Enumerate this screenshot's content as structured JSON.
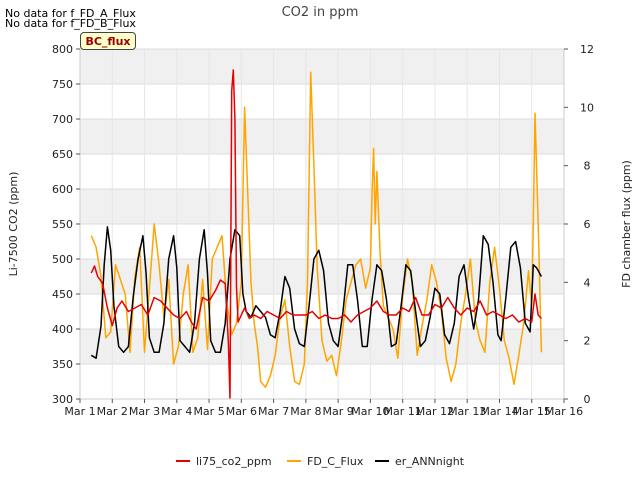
{
  "annotations": {
    "no_data_1": "No data for f_FD_A_Flux",
    "no_data_2": "No data for f_FD_B_Flux",
    "badge": "BC_flux"
  },
  "colors": {
    "li75": "#e60000",
    "fd_c": "#ffa500",
    "er": "#000000",
    "band": "#f0f0f0"
  },
  "chart_data": {
    "type": "line",
    "title": "CO2 in ppm",
    "ylabel": "Li-7500 CO2 (ppm)",
    "y2label": "FD chamber flux (ppm)",
    "ylim": [
      300,
      800
    ],
    "y2lim": [
      0,
      12
    ],
    "xlim": [
      1,
      16
    ],
    "yticks": [
      300,
      350,
      400,
      450,
      500,
      550,
      600,
      650,
      700,
      750,
      800
    ],
    "y2ticks": [
      0,
      2,
      4,
      6,
      8,
      10,
      12
    ],
    "xticks": [
      {
        "v": 1,
        "label": "Mar 1"
      },
      {
        "v": 2,
        "label": "Mar 2"
      },
      {
        "v": 3,
        "label": "Mar 3"
      },
      {
        "v": 4,
        "label": "Mar 4"
      },
      {
        "v": 5,
        "label": "Mar 5"
      },
      {
        "v": 6,
        "label": "Mar 6"
      },
      {
        "v": 7,
        "label": "Mar 7"
      },
      {
        "v": 8,
        "label": "Mar 8"
      },
      {
        "v": 9,
        "label": "Mar 9"
      },
      {
        "v": 10,
        "label": "Mar 10"
      },
      {
        "v": 11,
        "label": "Mar 11"
      },
      {
        "v": 12,
        "label": "Mar 12"
      },
      {
        "v": 13,
        "label": "Mar 13"
      },
      {
        "v": 14,
        "label": "Mar 14"
      },
      {
        "v": 15,
        "label": "Mar 15"
      },
      {
        "v": 16,
        "label": "Mar 16"
      }
    ],
    "legend_position": "bottom",
    "series": [
      {
        "name": "li75_co2_ppm",
        "axis": "left",
        "color": "#e60000",
        "x": [
          1.35,
          1.45,
          1.55,
          1.7,
          1.85,
          2.0,
          2.15,
          2.3,
          2.5,
          2.7,
          2.9,
          3.1,
          3.3,
          3.5,
          3.7,
          3.9,
          4.1,
          4.3,
          4.45,
          4.6,
          4.8,
          5.0,
          5.2,
          5.35,
          5.5,
          5.6,
          5.65,
          5.7,
          5.75,
          5.8,
          5.85,
          5.9,
          6.0,
          6.1,
          6.25,
          6.4,
          6.6,
          6.8,
          7.0,
          7.2,
          7.4,
          7.6,
          7.8,
          8.0,
          8.2,
          8.4,
          8.6,
          8.8,
          9.0,
          9.2,
          9.4,
          9.6,
          9.8,
          10.0,
          10.2,
          10.4,
          10.6,
          10.8,
          11.0,
          11.2,
          11.4,
          11.6,
          11.8,
          12.0,
          12.2,
          12.4,
          12.6,
          12.8,
          13.0,
          13.2,
          13.4,
          13.6,
          13.8,
          14.0,
          14.2,
          14.4,
          14.6,
          14.8,
          15.0,
          15.1,
          15.2,
          15.3
        ],
        "y": [
          480,
          490,
          475,
          465,
          430,
          405,
          430,
          440,
          425,
          430,
          435,
          420,
          445,
          440,
          430,
          420,
          415,
          425,
          410,
          400,
          445,
          440,
          455,
          470,
          465,
          380,
          300,
          740,
          770,
          700,
          460,
          410,
          420,
          430,
          415,
          420,
          415,
          425,
          420,
          415,
          425,
          420,
          420,
          420,
          425,
          415,
          420,
          415,
          415,
          420,
          410,
          420,
          425,
          430,
          440,
          425,
          420,
          420,
          430,
          425,
          445,
          420,
          420,
          435,
          430,
          445,
          430,
          420,
          430,
          425,
          440,
          420,
          425,
          420,
          415,
          420,
          410,
          415,
          410,
          450,
          420,
          415
        ]
      },
      {
        "name": "FD_C_Flux",
        "axis": "right",
        "color": "#ffa500",
        "x": [
          1.35,
          1.5,
          1.65,
          1.8,
          1.95,
          2.1,
          2.25,
          2.4,
          2.55,
          2.7,
          2.85,
          3.0,
          3.15,
          3.3,
          3.45,
          3.6,
          3.75,
          3.9,
          4.05,
          4.2,
          4.35,
          4.5,
          4.65,
          4.8,
          4.95,
          5.1,
          5.25,
          5.4,
          5.55,
          5.7,
          5.85,
          6.0,
          6.1,
          6.2,
          6.3,
          6.4,
          6.5,
          6.6,
          6.75,
          6.9,
          7.05,
          7.2,
          7.35,
          7.5,
          7.65,
          7.8,
          7.95,
          8.05,
          8.15,
          8.25,
          8.35,
          8.5,
          8.65,
          8.8,
          8.95,
          9.1,
          9.25,
          9.4,
          9.55,
          9.7,
          9.85,
          10.0,
          10.05,
          10.1,
          10.15,
          10.2,
          10.3,
          10.4,
          10.55,
          10.7,
          10.85,
          11.0,
          11.15,
          11.3,
          11.45,
          11.6,
          11.75,
          11.9,
          12.05,
          12.2,
          12.35,
          12.5,
          12.65,
          12.8,
          12.95,
          13.1,
          13.25,
          13.4,
          13.55,
          13.7,
          13.85,
          14.0,
          14.15,
          14.3,
          14.45,
          14.6,
          14.75,
          14.9,
          15.0,
          15.05,
          15.1,
          15.2,
          15.3
        ],
        "y": [
          5.6,
          5.2,
          4.2,
          2.1,
          2.3,
          4.6,
          4.1,
          3.6,
          1.6,
          4.2,
          5.2,
          1.6,
          3.8,
          6.0,
          4.6,
          2.8,
          4.1,
          1.2,
          1.8,
          3.6,
          4.6,
          1.6,
          2.1,
          4.1,
          1.7,
          4.8,
          5.2,
          5.6,
          3.3,
          2.2,
          2.6,
          4.0,
          10.0,
          7.0,
          4.0,
          2.6,
          1.8,
          0.6,
          0.4,
          0.8,
          1.5,
          2.8,
          3.4,
          1.8,
          0.6,
          0.5,
          1.2,
          4.0,
          11.2,
          8.0,
          4.5,
          2.0,
          1.3,
          1.5,
          0.8,
          2.0,
          3.4,
          4.0,
          4.6,
          4.8,
          3.8,
          4.5,
          7.0,
          8.6,
          6.0,
          7.8,
          5.0,
          3.2,
          2.8,
          2.4,
          1.4,
          3.5,
          4.8,
          4.0,
          1.5,
          2.5,
          3.4,
          4.6,
          4.0,
          3.0,
          1.4,
          0.6,
          1.2,
          2.6,
          3.6,
          4.8,
          2.7,
          2.0,
          1.6,
          4.0,
          5.2,
          3.8,
          2.0,
          1.4,
          0.5,
          1.5,
          2.6,
          4.4,
          3.2,
          6.0,
          9.8,
          6.0,
          1.6
        ]
      },
      {
        "name": "er_ANNnight",
        "axis": "right",
        "color": "#000000",
        "x": [
          1.35,
          1.5,
          1.65,
          1.75,
          1.85,
          1.95,
          2.05,
          2.2,
          2.35,
          2.5,
          2.65,
          2.8,
          2.95,
          3.05,
          3.15,
          3.3,
          3.45,
          3.6,
          3.75,
          3.9,
          4.0,
          4.1,
          4.25,
          4.4,
          4.55,
          4.7,
          4.85,
          4.95,
          5.05,
          5.2,
          5.35,
          5.5,
          5.65,
          5.8,
          5.95,
          6.05,
          6.15,
          6.3,
          6.45,
          6.6,
          6.75,
          6.9,
          7.05,
          7.2,
          7.35,
          7.5,
          7.65,
          7.8,
          7.95,
          8.1,
          8.25,
          8.4,
          8.55,
          8.7,
          8.85,
          9.0,
          9.15,
          9.3,
          9.45,
          9.6,
          9.75,
          9.9,
          10.05,
          10.2,
          10.35,
          10.5,
          10.65,
          10.8,
          10.95,
          11.1,
          11.25,
          11.4,
          11.55,
          11.7,
          11.85,
          12.0,
          12.15,
          12.3,
          12.45,
          12.6,
          12.75,
          12.9,
          13.05,
          13.2,
          13.35,
          13.5,
          13.65,
          13.8,
          13.95,
          14.05,
          14.2,
          14.35,
          14.5,
          14.65,
          14.8,
          14.95,
          15.05,
          15.15,
          15.3
        ],
        "y": [
          1.5,
          1.4,
          2.5,
          4.6,
          5.9,
          5.1,
          3.2,
          1.8,
          1.6,
          1.8,
          3.5,
          4.8,
          5.6,
          4.3,
          2.1,
          1.6,
          1.6,
          2.6,
          4.8,
          5.6,
          4.5,
          2.0,
          1.8,
          1.6,
          2.6,
          4.8,
          5.8,
          4.3,
          2.0,
          1.6,
          1.6,
          2.6,
          4.8,
          5.8,
          5.6,
          3.6,
          3.0,
          2.8,
          3.2,
          3.0,
          2.8,
          2.2,
          2.1,
          3.0,
          4.2,
          3.8,
          2.4,
          1.9,
          1.8,
          3.2,
          4.8,
          5.1,
          4.4,
          2.6,
          2.0,
          1.8,
          3.0,
          4.6,
          4.6,
          3.4,
          1.8,
          1.8,
          3.4,
          4.6,
          4.4,
          3.4,
          1.8,
          1.9,
          3.2,
          4.6,
          4.4,
          3.0,
          1.8,
          2.0,
          2.8,
          3.8,
          3.6,
          2.2,
          1.9,
          2.6,
          4.2,
          4.6,
          3.4,
          2.4,
          3.4,
          5.6,
          5.3,
          4.0,
          2.2,
          2.0,
          3.5,
          5.2,
          5.4,
          4.5,
          2.6,
          2.3,
          4.6,
          4.5,
          4.2
        ]
      }
    ]
  }
}
